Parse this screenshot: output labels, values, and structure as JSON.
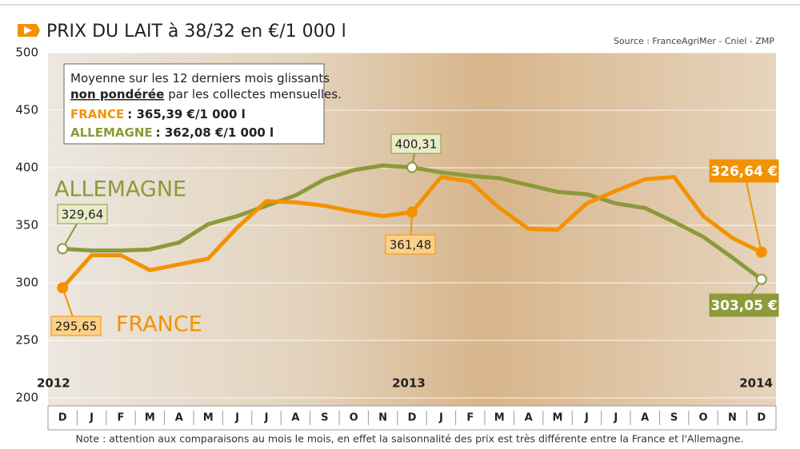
{
  "chart_data": {
    "type": "line",
    "title": "PRIX DU LAIT à 38/32 en €/1 000 l",
    "source": "Source : FranceAgriMer - Cniel - ZMP",
    "note": "Note : attention aux comparaisons au mois le mois, en effet la saisonnalité des prix est très différente entre la France et l'Allemagne.",
    "categories": [
      "D",
      "J",
      "F",
      "M",
      "A",
      "M",
      "J",
      "J",
      "A",
      "S",
      "O",
      "N",
      "D",
      "J",
      "F",
      "M",
      "A",
      "M",
      "J",
      "J",
      "A",
      "S",
      "O",
      "N",
      "D"
    ],
    "year_labels": [
      "2012",
      null,
      null,
      null,
      null,
      null,
      null,
      null,
      null,
      null,
      null,
      null,
      "2013",
      null,
      null,
      null,
      null,
      null,
      null,
      null,
      null,
      null,
      null,
      null,
      "2014"
    ],
    "ylim": [
      200,
      500
    ],
    "yticks": [
      200,
      250,
      300,
      350,
      400,
      450,
      500
    ],
    "grid": true,
    "series": [
      {
        "name": "FRANCE",
        "color": "#f39200",
        "values": [
          295.65,
          324,
          324,
          311,
          316,
          321,
          348,
          371,
          370,
          367,
          362,
          358,
          361.48,
          392,
          388,
          365,
          347,
          346,
          369,
          380,
          390,
          392,
          358,
          339,
          326.64
        ],
        "value_labels": [
          "295,65",
          null,
          null,
          null,
          null,
          null,
          null,
          null,
          null,
          null,
          null,
          null,
          "361,48",
          null,
          null,
          null,
          null,
          null,
          null,
          null,
          null,
          null,
          null,
          null,
          "326,64 €"
        ]
      },
      {
        "name": "ALLEMAGNE",
        "color": "#8c9a3a",
        "values": [
          329.64,
          328,
          328,
          329,
          335,
          351,
          358,
          367,
          376,
          390,
          398,
          402,
          400.31,
          396,
          393,
          391,
          385,
          379,
          377,
          369,
          365,
          353,
          340,
          322,
          303.05
        ],
        "value_labels": [
          "329,64",
          null,
          null,
          null,
          null,
          null,
          null,
          null,
          null,
          null,
          null,
          null,
          "400,31",
          null,
          null,
          null,
          null,
          null,
          null,
          null,
          null,
          null,
          null,
          null,
          "303,05 €"
        ]
      }
    ],
    "annotations": {
      "line1": "Moyenne sur les 12 derniers mois glissants",
      "line2_bold": "non pondérée",
      "line2_rest": "par les collectes mensuelles.",
      "france_label": "FRANCE",
      "france_value": ": 365,39 €/1 000 l",
      "germany_label": "ALLEMAGNE",
      "germany_value": ": 362,08 €/1 000 l"
    }
  }
}
